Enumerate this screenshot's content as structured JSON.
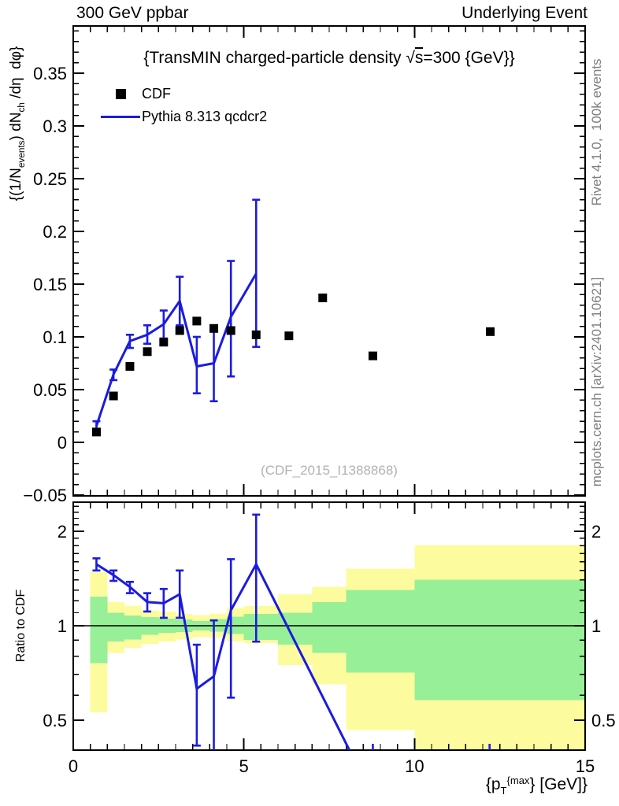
{
  "header": {
    "left": "300 GeV ppbar",
    "right": "Underlying Event"
  },
  "title_parts": {
    "pre": "{TransMIN charged-particle density ",
    "sqrt_sym": "√",
    "sqrt_arg": "s",
    "post": "=300 {GeV}}"
  },
  "legend": [
    {
      "label": "CDF",
      "marker": "square",
      "color": "#000000"
    },
    {
      "label": "Pythia 8.313 qcdcr2",
      "marker": "line",
      "color": "#1b1be0"
    }
  ],
  "axes": {
    "y_label_parts": {
      "p1": "{(1/N",
      "sub1": "events",
      "p2": ") dN",
      "sub2": "ch",
      "p3": " /dη  dφ}"
    },
    "x_label_parts": {
      "p1": "{p",
      "sub1": "T",
      "sup1": "{max",
      "p2": "} [GeV]}"
    },
    "ratio_label": "Ratio to CDF"
  },
  "side_notes": {
    "top_right": "Rivet 4.1.0,  100k events",
    "bottom_right": "mcplots.cern.ch [arXiv:2401.10621]"
  },
  "watermark": "(CDF_2015_I1388868)",
  "colors": {
    "accent_blue": "#1b1be0",
    "band_yellow": "#fcfc9e",
    "band_green": "#97ef98",
    "note_gray": "#7f7f7f",
    "watermark_gray": "#b2b2b2"
  },
  "chart_data": {
    "type": "line",
    "title": "{TransMIN charged-particle density √s=300 {GeV}}",
    "xlabel": "{p_T^{max}} [GeV]}",
    "ylabel": "{(1/N_events) dN_ch /dη dφ}",
    "ratio_ylabel": "Ratio to CDF",
    "xlim": [
      0,
      15
    ],
    "main_ylim": [
      -0.051,
      0.395
    ],
    "ratio_ylim": [
      0.4,
      2.48
    ],
    "ratio_scale": "log",
    "x_ticks": {
      "major": [
        0,
        5,
        10,
        15
      ],
      "labels": [
        "0",
        "5",
        "10",
        "15"
      ],
      "minor_step": 0.5
    },
    "y_ticks": {
      "major": [
        -0.05,
        0,
        0.05,
        0.1,
        0.15,
        0.2,
        0.25,
        0.3,
        0.35
      ],
      "labels": [
        "−0.05",
        "0",
        "0.05",
        "0.1",
        "0.15",
        "0.2",
        "0.25",
        "0.3",
        "0.35"
      ],
      "minor_step": 0.01
    },
    "ratio_ticks": {
      "major": [
        0.5,
        1,
        2
      ],
      "labels": [
        "0.5",
        "1",
        "2"
      ],
      "minor": [
        0.6,
        0.7,
        0.8,
        0.9,
        1.1,
        1.2,
        1.3,
        1.4,
        1.5,
        1.6,
        1.7,
        1.8,
        1.9,
        2.1,
        2.2,
        2.3,
        2.4
      ]
    },
    "series": [
      {
        "name": "CDF",
        "type": "scatter",
        "marker": "square",
        "color": "#000000",
        "points": [
          [
            0.68,
            0.0098
          ],
          [
            1.18,
            0.044
          ],
          [
            1.66,
            0.072
          ],
          [
            2.17,
            0.086
          ],
          [
            2.65,
            0.095
          ],
          [
            3.12,
            0.106
          ],
          [
            3.62,
            0.115
          ],
          [
            4.12,
            0.108
          ],
          [
            4.62,
            0.106
          ],
          [
            5.36,
            0.102
          ],
          [
            6.32,
            0.101
          ],
          [
            7.31,
            0.137
          ],
          [
            8.78,
            0.082
          ],
          [
            12.22,
            0.105
          ]
        ]
      },
      {
        "name": "Pythia 8.313 qcdcr2",
        "type": "line",
        "color": "#1b1be0",
        "points": [
          {
            "x": 0.68,
            "y": 0.0155,
            "lo": 0.0105,
            "hi": 0.02
          },
          {
            "x": 1.18,
            "y": 0.0645,
            "lo": 0.059,
            "hi": 0.069
          },
          {
            "x": 1.66,
            "y": 0.096,
            "lo": 0.0895,
            "hi": 0.102
          },
          {
            "x": 2.17,
            "y": 0.102,
            "lo": 0.0935,
            "hi": 0.111
          },
          {
            "x": 2.65,
            "y": 0.112,
            "lo": 0.0985,
            "hi": 0.125
          },
          {
            "x": 3.12,
            "y": 0.134,
            "lo": 0.111,
            "hi": 0.157
          },
          {
            "x": 3.62,
            "y": 0.072,
            "lo": 0.0465,
            "hi": 0.1
          },
          {
            "x": 4.12,
            "y": 0.075,
            "lo": 0.039,
            "hi": 0.111
          },
          {
            "x": 4.62,
            "y": 0.119,
            "lo": 0.0625,
            "hi": 0.172
          },
          {
            "x": 5.36,
            "y": 0.16,
            "lo": 0.0905,
            "hi": 0.23
          }
        ]
      }
    ],
    "ratio": {
      "points": [
        {
          "x": 0.68,
          "r": 1.57,
          "lo": 1.5,
          "hi": 1.64
        },
        {
          "x": 1.18,
          "r": 1.45,
          "lo": 1.39,
          "hi": 1.5
        },
        {
          "x": 1.66,
          "r": 1.33,
          "lo": 1.27,
          "hi": 1.38
        },
        {
          "x": 2.17,
          "r": 1.19,
          "lo": 1.11,
          "hi": 1.27
        },
        {
          "x": 2.65,
          "r": 1.18,
          "lo": 1.06,
          "hi": 1.31
        },
        {
          "x": 3.12,
          "r": 1.26,
          "lo": 1.06,
          "hi": 1.5
        },
        {
          "x": 3.62,
          "r": 0.63,
          "lo": 0.415,
          "hi": 0.87
        },
        {
          "x": 4.12,
          "r": 0.69,
          "lo": 0.3,
          "hi": 1.04
        },
        {
          "x": 4.62,
          "r": 1.12,
          "lo": 0.59,
          "hi": 1.63
        },
        {
          "x": 5.36,
          "r": 1.57,
          "lo": 0.89,
          "hi": 2.26
        }
      ],
      "line_exit": {
        "x": 8.1,
        "r": 0.4
      },
      "stub_x": [
        8.78,
        12.2
      ],
      "band_edges": [
        0.5,
        1,
        1.5,
        2,
        2.5,
        3,
        3.5,
        4,
        4.5,
        5,
        6,
        7,
        8,
        10,
        15
      ],
      "yellow": [
        [
          0.53,
          1.48
        ],
        [
          0.82,
          1.19
        ],
        [
          0.85,
          1.16
        ],
        [
          0.875,
          1.12
        ],
        [
          0.89,
          1.11
        ],
        [
          0.905,
          1.09
        ],
        [
          0.92,
          1.08
        ],
        [
          0.915,
          1.095
        ],
        [
          0.89,
          1.14
        ],
        [
          0.88,
          1.155
        ],
        [
          0.75,
          1.26
        ],
        [
          0.65,
          1.33
        ],
        [
          0.465,
          1.52
        ],
        [
          0.4,
          1.81
        ]
      ],
      "green": [
        [
          0.76,
          1.24
        ],
        [
          0.89,
          1.1
        ],
        [
          0.905,
          1.078
        ],
        [
          0.935,
          1.066
        ],
        [
          0.948,
          1.053
        ],
        [
          0.955,
          1.047
        ],
        [
          0.965,
          1.035
        ],
        [
          0.958,
          1.049
        ],
        [
          0.94,
          1.07
        ],
        [
          0.9,
          1.09
        ],
        [
          0.87,
          1.1
        ],
        [
          0.82,
          1.19
        ],
        [
          0.71,
          1.3
        ],
        [
          0.58,
          1.4
        ]
      ]
    }
  }
}
